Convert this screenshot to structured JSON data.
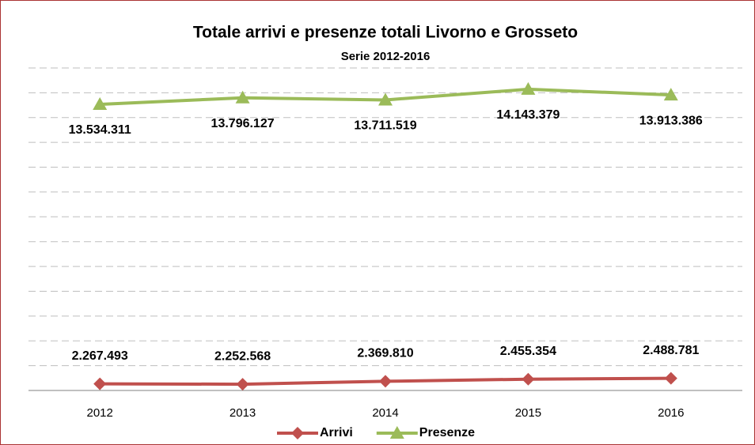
{
  "chart_data": {
    "type": "line",
    "title": "Totale arrivi e presenze totali Livorno e Grosseto",
    "subtitle": "Serie 2012-2016",
    "categories": [
      "2012",
      "2013",
      "2014",
      "2015",
      "2016"
    ],
    "series": [
      {
        "name": "Arrivi",
        "color": "#c0504d",
        "marker": "diamond",
        "values": [
          2267493,
          2252568,
          2369810,
          2455354,
          2488781
        ],
        "value_labels": [
          "2.267.493",
          "2.252.568",
          "2.369.810",
          "2.455.354",
          "2.488.781"
        ]
      },
      {
        "name": "Presenze",
        "color": "#9bbb59",
        "marker": "triangle",
        "values": [
          13534311,
          13796127,
          13711519,
          14143379,
          13913386
        ],
        "value_labels": [
          "13.534.311",
          "13.796.127",
          "13.711.519",
          "14.143.379",
          "13.913.386"
        ]
      }
    ],
    "ylim": [
      2000000,
      15000000
    ],
    "yticks": [
      2000000,
      3000000,
      4000000,
      5000000,
      6000000,
      7000000,
      8000000,
      9000000,
      10000000,
      11000000,
      12000000,
      13000000,
      14000000,
      15000000
    ],
    "grid": true,
    "legend": "bottom"
  }
}
